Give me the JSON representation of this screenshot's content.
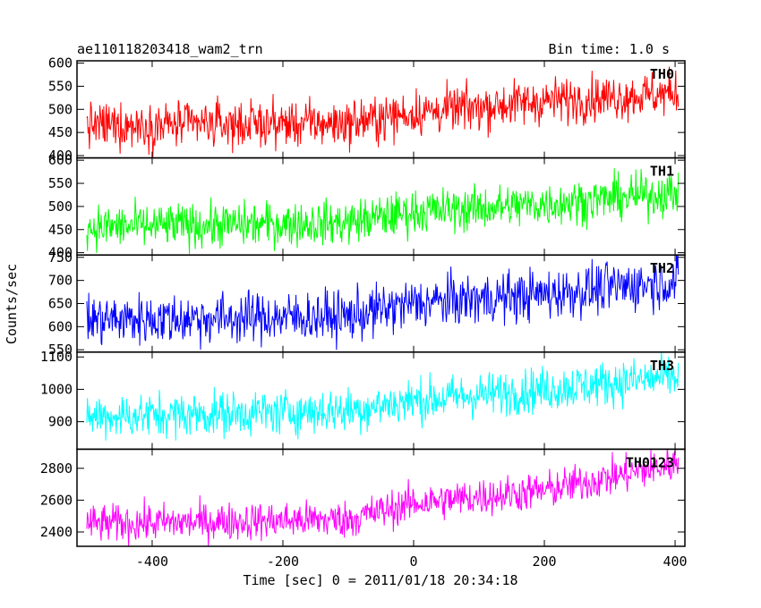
{
  "header": {
    "title": "ae110118203418_wam2_trn",
    "bin_time": "Bin time: 1.0 s"
  },
  "chart_data": {
    "type": "line",
    "xlabel": "Time [sec] 0 = 2011/01/18 20:34:18",
    "ylabel": "Counts/sec",
    "xlim": [
      -515,
      415
    ],
    "x_start": -500,
    "x_end": 405,
    "x_step": 1,
    "xticks": [
      -400,
      -200,
      0,
      200,
      400
    ],
    "panels": [
      {
        "name": "TH0",
        "color": "#ff0000",
        "ylim": [
          395,
          605
        ],
        "yticks": [
          400,
          450,
          500,
          550,
          600
        ],
        "trend": [
          [
            -500,
            465
          ],
          [
            -100,
            470
          ],
          [
            0,
            492
          ],
          [
            200,
            518
          ],
          [
            405,
            535
          ]
        ],
        "noise": 25
      },
      {
        "name": "TH1",
        "color": "#00ff00",
        "ylim": [
          395,
          605
        ],
        "yticks": [
          400,
          450,
          500,
          550,
          600
        ],
        "trend": [
          [
            -500,
            455
          ],
          [
            -100,
            465
          ],
          [
            0,
            488
          ],
          [
            200,
            505
          ],
          [
            405,
            530
          ]
        ],
        "noise": 24
      },
      {
        "name": "TH2",
        "color": "#0000ff",
        "ylim": [
          545,
          755
        ],
        "yticks": [
          550,
          600,
          650,
          700,
          750
        ],
        "trend": [
          [
            -500,
            615
          ],
          [
            -100,
            622
          ],
          [
            0,
            650
          ],
          [
            200,
            670
          ],
          [
            405,
            700
          ]
        ],
        "noise": 28
      },
      {
        "name": "TH3",
        "color": "#00ffff",
        "ylim": [
          815,
          1115
        ],
        "yticks": [
          900,
          1000,
          1100
        ],
        "trend": [
          [
            -500,
            915
          ],
          [
            -100,
            935
          ],
          [
            0,
            965
          ],
          [
            200,
            1000
          ],
          [
            405,
            1040
          ]
        ],
        "noise": 35
      },
      {
        "name": "TH0123",
        "color": "#ff00ff",
        "ylim": [
          2310,
          2920
        ],
        "yticks": [
          2400,
          2600,
          2800
        ],
        "trend": [
          [
            -500,
            2450
          ],
          [
            -100,
            2480
          ],
          [
            0,
            2580
          ],
          [
            200,
            2660
          ],
          [
            405,
            2830
          ]
        ],
        "noise": 60
      }
    ]
  }
}
